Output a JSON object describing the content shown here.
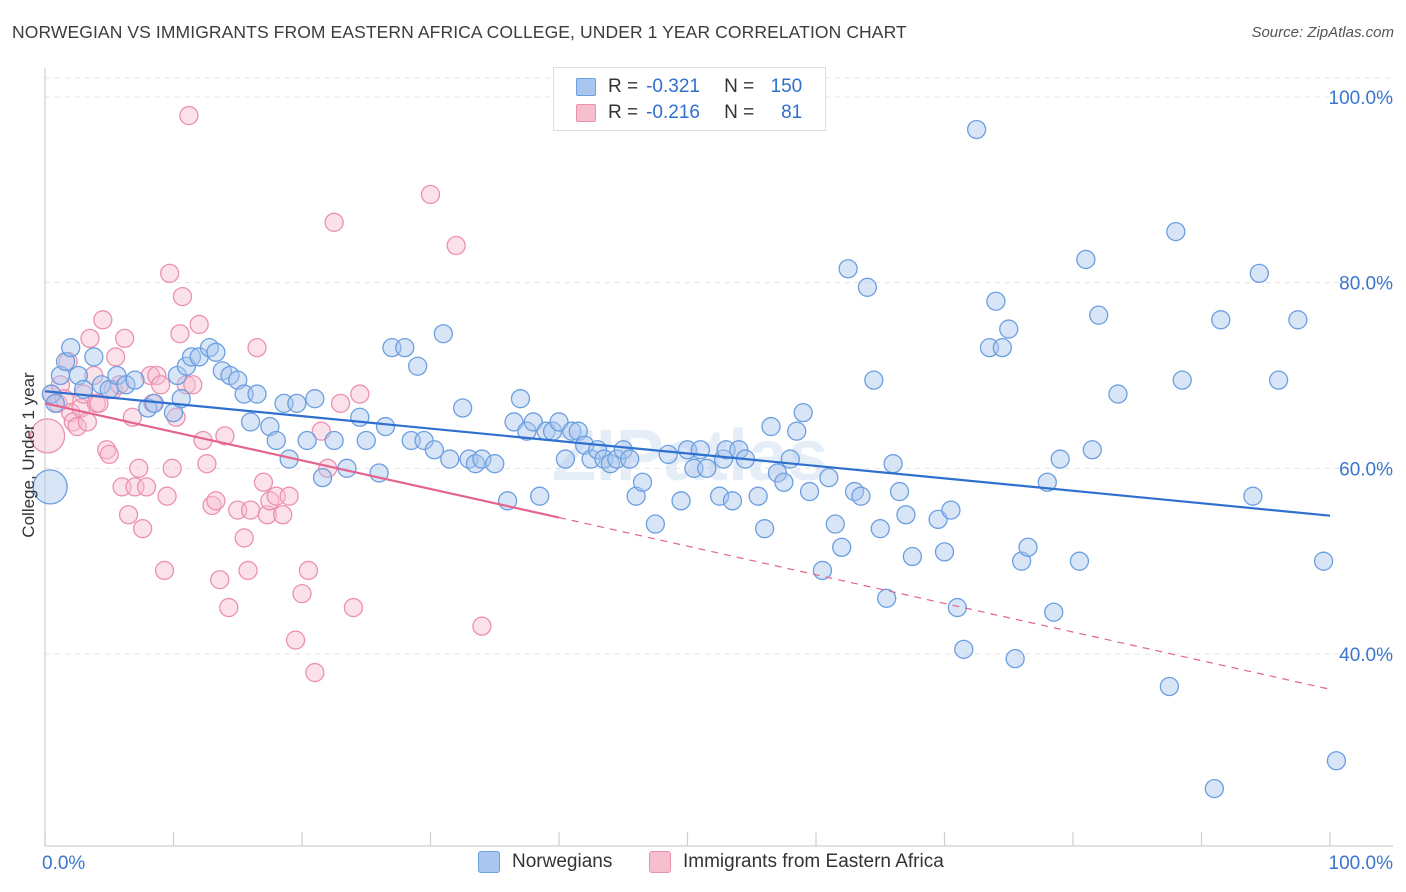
{
  "title": "NORWEGIAN VS IMMIGRANTS FROM EASTERN AFRICA COLLEGE, UNDER 1 YEAR CORRELATION CHART",
  "source": "Source: ZipAtlas.com",
  "watermark": "ZIPatlas",
  "legend_top": [
    {
      "r_label": "R =",
      "r_value": "-0.321",
      "n_label": "N =",
      "n_value": "150"
    },
    {
      "r_label": "R =",
      "r_value": "-0.216",
      "n_label": "N =",
      "n_value": "81"
    }
  ],
  "legend_bottom": [
    "Norwegians",
    "Immigrants from Eastern Africa"
  ],
  "colors": {
    "blue": "#6c9fe0",
    "blue_fill": "#a9c6ee",
    "blue_line": "#2f6fce",
    "pink": "#ec91ad",
    "pink_fill": "#f6bfd0",
    "pink_line": "#e3648e",
    "grid": "#e3e3e3",
    "tick_text": "#3a76cf"
  },
  "chart_data": {
    "type": "scatter",
    "title": "NORWEGIAN VS IMMIGRANTS FROM EASTERN AFRICA COLLEGE, UNDER 1 YEAR CORRELATION CHART",
    "xlabel": "",
    "ylabel": "College, Under 1 year",
    "xlim": [
      0,
      100
    ],
    "ylim": [
      20,
      103
    ],
    "x_tick_labels": [
      "0.0%",
      "100.0%"
    ],
    "y_ticks": [
      40,
      60,
      80,
      100
    ],
    "y_tick_labels": [
      "40.0%",
      "60.0%",
      "80.0%",
      "100.0%"
    ],
    "grid": true,
    "legend": "top-center",
    "series": [
      {
        "name": "Norwegians",
        "r": -0.321,
        "n": 150,
        "trend": {
          "x0": 0,
          "y0": 68.3,
          "x1": 100,
          "y1": 54.9
        },
        "points": [
          [
            0.4,
            58
          ],
          [
            0.5,
            68
          ],
          [
            0.8,
            67
          ],
          [
            1.2,
            70
          ],
          [
            1.6,
            71.5
          ],
          [
            2,
            73
          ],
          [
            2.6,
            70
          ],
          [
            3,
            68.5
          ],
          [
            3.8,
            72
          ],
          [
            4.4,
            69
          ],
          [
            5,
            68.5
          ],
          [
            5.6,
            70
          ],
          [
            6.3,
            69
          ],
          [
            7,
            69.5
          ],
          [
            8,
            66.5
          ],
          [
            8.5,
            67
          ],
          [
            10,
            66
          ],
          [
            10.3,
            70
          ],
          [
            10.6,
            67.5
          ],
          [
            11,
            71
          ],
          [
            11.4,
            72
          ],
          [
            12,
            72
          ],
          [
            12.8,
            73
          ],
          [
            13.3,
            72.5
          ],
          [
            13.8,
            70.5
          ],
          [
            14.4,
            70
          ],
          [
            15,
            69.5
          ],
          [
            15.5,
            68
          ],
          [
            16,
            65
          ],
          [
            16.5,
            68
          ],
          [
            17.5,
            64.5
          ],
          [
            18,
            63
          ],
          [
            18.6,
            67
          ],
          [
            19,
            61
          ],
          [
            19.6,
            67
          ],
          [
            20.4,
            63
          ],
          [
            21,
            67.5
          ],
          [
            21.6,
            59
          ],
          [
            22.5,
            63
          ],
          [
            23.5,
            60
          ],
          [
            24.5,
            65.5
          ],
          [
            25,
            63
          ],
          [
            26,
            59.5
          ],
          [
            26.5,
            64.5
          ],
          [
            27,
            73
          ],
          [
            28,
            73
          ],
          [
            28.5,
            63
          ],
          [
            29,
            71
          ],
          [
            29.5,
            63
          ],
          [
            30.3,
            62
          ],
          [
            31,
            74.5
          ],
          [
            31.5,
            61
          ],
          [
            32.5,
            66.5
          ],
          [
            33,
            61
          ],
          [
            33.5,
            60.5
          ],
          [
            34,
            61
          ],
          [
            35,
            60.5
          ],
          [
            36,
            56.5
          ],
          [
            36.5,
            65
          ],
          [
            37,
            67.5
          ],
          [
            37.5,
            64
          ],
          [
            38,
            65
          ],
          [
            38.5,
            57
          ],
          [
            39,
            64
          ],
          [
            39.5,
            64
          ],
          [
            40,
            65
          ],
          [
            40.5,
            61
          ],
          [
            41,
            64
          ],
          [
            41.5,
            64
          ],
          [
            42,
            62.5
          ],
          [
            42.5,
            61
          ],
          [
            43,
            62
          ],
          [
            43.5,
            61
          ],
          [
            44,
            60.5
          ],
          [
            44.5,
            61
          ],
          [
            45,
            62
          ],
          [
            45.5,
            61
          ],
          [
            46,
            57
          ],
          [
            46.5,
            58.5
          ],
          [
            47.5,
            54
          ],
          [
            48.5,
            61.5
          ],
          [
            49.5,
            56.5
          ],
          [
            50,
            62
          ],
          [
            50.5,
            60
          ],
          [
            51,
            62
          ],
          [
            51.5,
            60
          ],
          [
            52.5,
            57
          ],
          [
            52.8,
            61
          ],
          [
            53,
            62
          ],
          [
            53.5,
            56.5
          ],
          [
            54,
            62
          ],
          [
            54.5,
            61
          ],
          [
            55.5,
            57
          ],
          [
            56,
            53.5
          ],
          [
            56.5,
            64.5
          ],
          [
            57,
            59.5
          ],
          [
            57.5,
            58.5
          ],
          [
            58,
            61
          ],
          [
            58.5,
            64
          ],
          [
            59,
            66
          ],
          [
            59.5,
            57.5
          ],
          [
            60.5,
            49
          ],
          [
            61,
            59
          ],
          [
            61.5,
            54
          ],
          [
            62,
            51.5
          ],
          [
            62.5,
            81.5
          ],
          [
            63,
            57.5
          ],
          [
            63.5,
            57
          ],
          [
            64,
            79.5
          ],
          [
            64.5,
            69.5
          ],
          [
            65,
            53.5
          ],
          [
            65.5,
            46
          ],
          [
            66,
            60.5
          ],
          [
            66.5,
            57.5
          ],
          [
            67,
            55
          ],
          [
            67.5,
            50.5
          ],
          [
            69.5,
            54.5
          ],
          [
            70,
            51
          ],
          [
            70.5,
            55.5
          ],
          [
            71,
            45
          ],
          [
            71.5,
            40.5
          ],
          [
            72.5,
            96.5
          ],
          [
            73.5,
            73
          ],
          [
            74,
            78
          ],
          [
            74.5,
            73
          ],
          [
            75,
            75
          ],
          [
            75.5,
            39.5
          ],
          [
            76,
            50
          ],
          [
            76.5,
            51.5
          ],
          [
            78,
            58.5
          ],
          [
            78.5,
            44.5
          ],
          [
            79,
            61
          ],
          [
            80.5,
            50
          ],
          [
            81,
            82.5
          ],
          [
            81.5,
            62
          ],
          [
            82,
            76.5
          ],
          [
            83.5,
            68
          ],
          [
            87.5,
            36.5
          ],
          [
            88,
            85.5
          ],
          [
            88.5,
            69.5
          ],
          [
            91,
            25.5
          ],
          [
            91.5,
            76
          ],
          [
            94,
            57
          ],
          [
            94.5,
            81
          ],
          [
            96,
            69.5
          ],
          [
            97.5,
            76
          ],
          [
            99.5,
            50
          ],
          [
            100.5,
            28.5
          ]
        ]
      },
      {
        "name": "Immigrants from Eastern Africa",
        "r": -0.216,
        "n": 81,
        "trend": {
          "x0": 0,
          "y0": 67,
          "x1": 40,
          "y1": 54.7
        },
        "trend_dashed": {
          "x0": 40,
          "y0": 54.7,
          "x1": 100,
          "y1": 36.2
        },
        "points": [
          [
            0.2,
            63.5
          ],
          [
            0.5,
            68
          ],
          [
            1,
            67
          ],
          [
            1.2,
            69
          ],
          [
            1.5,
            67.5
          ],
          [
            1.8,
            71.5
          ],
          [
            2,
            66
          ],
          [
            2.2,
            65
          ],
          [
            2.5,
            64.5
          ],
          [
            2.8,
            66.5
          ],
          [
            3,
            68
          ],
          [
            3.3,
            65
          ],
          [
            3.5,
            74
          ],
          [
            3.8,
            70
          ],
          [
            4,
            67
          ],
          [
            4.2,
            67
          ],
          [
            4.5,
            76
          ],
          [
            4.8,
            62
          ],
          [
            5,
            61.5
          ],
          [
            5.3,
            68.5
          ],
          [
            5.5,
            72
          ],
          [
            5.8,
            69
          ],
          [
            6,
            58
          ],
          [
            6.2,
            74
          ],
          [
            6.5,
            55
          ],
          [
            6.8,
            65.5
          ],
          [
            7,
            58
          ],
          [
            7.3,
            60
          ],
          [
            7.6,
            53.5
          ],
          [
            7.9,
            58
          ],
          [
            8.2,
            70
          ],
          [
            8.4,
            67
          ],
          [
            8.7,
            70
          ],
          [
            9,
            69
          ],
          [
            9.3,
            49
          ],
          [
            9.5,
            57
          ],
          [
            9.7,
            81
          ],
          [
            9.9,
            60
          ],
          [
            10.2,
            65.5
          ],
          [
            10.5,
            74.5
          ],
          [
            10.7,
            78.5
          ],
          [
            11,
            69
          ],
          [
            11.2,
            98
          ],
          [
            11.5,
            69
          ],
          [
            12,
            75.5
          ],
          [
            12.3,
            63
          ],
          [
            12.6,
            60.5
          ],
          [
            13,
            56
          ],
          [
            13.3,
            56.5
          ],
          [
            13.6,
            48
          ],
          [
            14,
            63.5
          ],
          [
            14.3,
            45
          ],
          [
            15,
            55.5
          ],
          [
            15.5,
            52.5
          ],
          [
            15.8,
            49
          ],
          [
            16,
            55.5
          ],
          [
            16.5,
            73
          ],
          [
            17,
            58.5
          ],
          [
            17.3,
            55
          ],
          [
            17.5,
            56.5
          ],
          [
            18,
            57
          ],
          [
            18.5,
            55
          ],
          [
            19,
            57
          ],
          [
            19.5,
            41.5
          ],
          [
            20,
            46.5
          ],
          [
            20.5,
            49
          ],
          [
            21,
            38
          ],
          [
            21.5,
            64
          ],
          [
            22,
            60
          ],
          [
            22.5,
            86.5
          ],
          [
            23,
            67
          ],
          [
            24,
            45
          ],
          [
            24.5,
            68
          ],
          [
            30,
            89.5
          ],
          [
            32,
            84
          ],
          [
            34,
            43
          ]
        ]
      }
    ]
  }
}
